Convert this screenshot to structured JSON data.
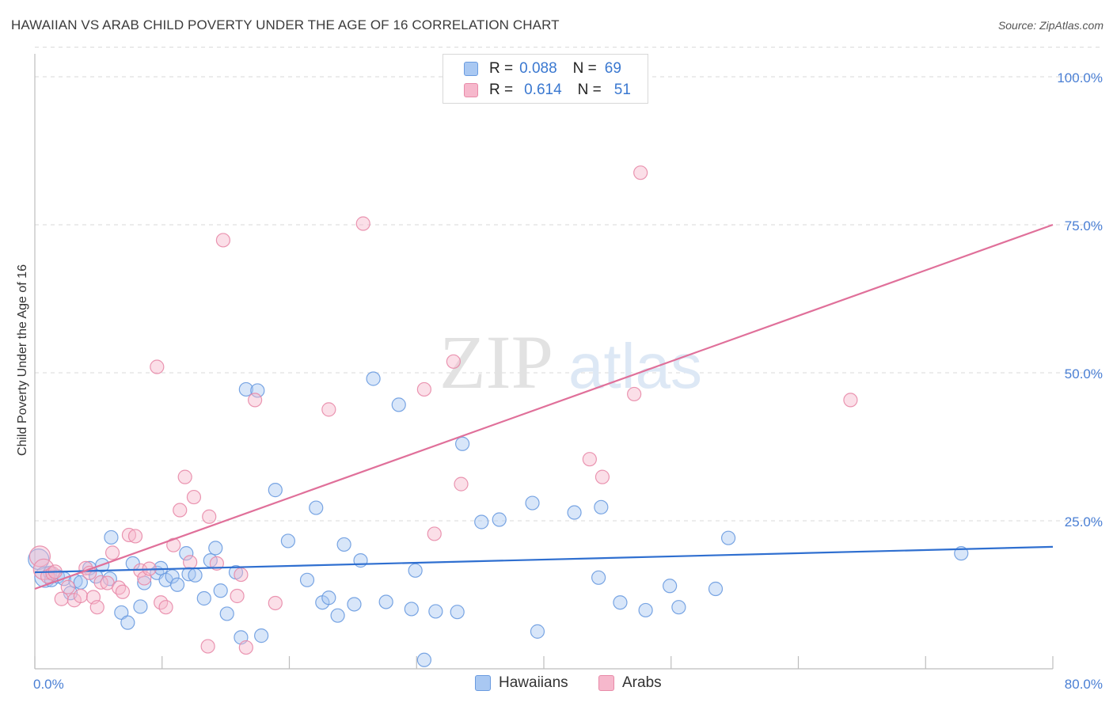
{
  "title": "HAWAIIAN VS ARAB CHILD POVERTY UNDER THE AGE OF 16 CORRELATION CHART",
  "source": "Source: ZipAtlas.com",
  "watermark": {
    "part1": "ZIP",
    "part2": "atlas"
  },
  "colors": {
    "hawaiians_fill": "#a9c8f2",
    "hawaiians_stroke": "#6a9be0",
    "hawaiians_line": "#2f6fd0",
    "arabs_fill": "#f6b8cc",
    "arabs_stroke": "#e88aa8",
    "arabs_line": "#e0709a",
    "grid": "#d9d9d9",
    "tick_label": "#4a7fd4"
  },
  "legend": {
    "row1": {
      "r_label": "R =",
      "r_value": "0.088",
      "n_label": "N =",
      "n_value": "69"
    },
    "row2": {
      "r_label": "R =",
      "r_value": "0.614",
      "n_label": "N =",
      "n_value": "51"
    }
  },
  "bottom_legend": {
    "series1": "Hawaiians",
    "series2": "Arabs"
  },
  "chart_data": {
    "type": "scatter",
    "title": "HAWAIIAN VS ARAB CHILD POVERTY UNDER THE AGE OF 16 CORRELATION CHART",
    "xlabel": "",
    "ylabel": "Child Poverty Under the Age of 16",
    "xlim": [
      0,
      80
    ],
    "ylim": [
      0,
      105
    ],
    "x_tick_labels": [
      "0.0%",
      "80.0%"
    ],
    "y_ticks": [
      25,
      50,
      75,
      100
    ],
    "y_tick_labels": [
      "25.0%",
      "50.0%",
      "75.0%",
      "100.0%"
    ],
    "grid": true,
    "series": [
      {
        "name": "Hawaiians",
        "R": 0.088,
        "N": 69,
        "trend": {
          "x": [
            0,
            80
          ],
          "y": [
            16.3,
            20.6
          ]
        },
        "points": [
          [
            0.3,
            18.5
          ],
          [
            0.8,
            15.5
          ],
          [
            1.2,
            16.2
          ],
          [
            1.3,
            15.0
          ],
          [
            1.8,
            15.6
          ],
          [
            2.3,
            15.2
          ],
          [
            2.8,
            12.8
          ],
          [
            3.2,
            14.8
          ],
          [
            3.6,
            14.6
          ],
          [
            4.3,
            17.0
          ],
          [
            4.8,
            15.6
          ],
          [
            5.3,
            17.5
          ],
          [
            5.9,
            15.2
          ],
          [
            6.0,
            22.2
          ],
          [
            6.8,
            9.5
          ],
          [
            7.3,
            7.8
          ],
          [
            7.7,
            17.8
          ],
          [
            8.3,
            10.5
          ],
          [
            8.6,
            14.5
          ],
          [
            9.6,
            16.2
          ],
          [
            9.9,
            17.0
          ],
          [
            10.3,
            15.0
          ],
          [
            10.8,
            15.6
          ],
          [
            11.2,
            14.2
          ],
          [
            11.9,
            19.5
          ],
          [
            12.1,
            16.0
          ],
          [
            12.6,
            15.8
          ],
          [
            13.3,
            11.9
          ],
          [
            13.8,
            18.3
          ],
          [
            14.2,
            20.4
          ],
          [
            14.6,
            13.2
          ],
          [
            15.1,
            9.3
          ],
          [
            15.8,
            16.3
          ],
          [
            16.2,
            5.3
          ],
          [
            16.6,
            47.2
          ],
          [
            17.5,
            47.0
          ],
          [
            17.8,
            5.6
          ],
          [
            18.9,
            30.2
          ],
          [
            19.9,
            21.6
          ],
          [
            21.4,
            15.0
          ],
          [
            22.1,
            27.2
          ],
          [
            22.6,
            11.2
          ],
          [
            23.1,
            12.0
          ],
          [
            23.8,
            9.0
          ],
          [
            24.3,
            21.0
          ],
          [
            25.1,
            10.9
          ],
          [
            25.6,
            18.3
          ],
          [
            26.6,
            49.0
          ],
          [
            27.6,
            11.3
          ],
          [
            28.6,
            44.6
          ],
          [
            29.6,
            10.1
          ],
          [
            29.9,
            16.6
          ],
          [
            30.6,
            1.5
          ],
          [
            31.5,
            9.7
          ],
          [
            33.2,
            9.6
          ],
          [
            33.6,
            38.0
          ],
          [
            35.1,
            24.8
          ],
          [
            36.5,
            25.2
          ],
          [
            39.1,
            28.0
          ],
          [
            39.5,
            6.3
          ],
          [
            42.4,
            26.4
          ],
          [
            44.3,
            15.4
          ],
          [
            44.5,
            27.3
          ],
          [
            46.0,
            11.2
          ],
          [
            48.0,
            9.9
          ],
          [
            49.9,
            14.0
          ],
          [
            50.6,
            10.4
          ],
          [
            53.5,
            13.5
          ],
          [
            54.5,
            22.1
          ],
          [
            72.8,
            19.5
          ]
        ]
      },
      {
        "name": "Arabs",
        "R": 0.614,
        "N": 51,
        "trend": {
          "x": [
            0,
            80
          ],
          "y": [
            13.5,
            75.0
          ]
        },
        "points": [
          [
            0.4,
            19.0
          ],
          [
            0.7,
            16.8
          ],
          [
            1.0,
            15.6
          ],
          [
            1.4,
            16.1
          ],
          [
            1.6,
            16.4
          ],
          [
            2.1,
            11.8
          ],
          [
            2.6,
            13.8
          ],
          [
            3.1,
            11.6
          ],
          [
            3.6,
            12.3
          ],
          [
            4.0,
            17.0
          ],
          [
            4.3,
            16.2
          ],
          [
            4.6,
            12.1
          ],
          [
            4.9,
            10.4
          ],
          [
            5.2,
            14.6
          ],
          [
            5.7,
            14.5
          ],
          [
            6.1,
            19.6
          ],
          [
            6.6,
            13.7
          ],
          [
            6.9,
            13.0
          ],
          [
            7.4,
            22.6
          ],
          [
            7.9,
            22.4
          ],
          [
            8.3,
            16.6
          ],
          [
            8.6,
            15.3
          ],
          [
            9.0,
            16.9
          ],
          [
            9.6,
            51.0
          ],
          [
            9.9,
            11.2
          ],
          [
            10.3,
            10.4
          ],
          [
            10.9,
            20.9
          ],
          [
            11.4,
            26.8
          ],
          [
            11.8,
            32.4
          ],
          [
            12.2,
            18.0
          ],
          [
            12.5,
            29.0
          ],
          [
            13.6,
            3.8
          ],
          [
            13.7,
            25.7
          ],
          [
            14.3,
            17.8
          ],
          [
            14.8,
            72.4
          ],
          [
            15.9,
            12.3
          ],
          [
            16.2,
            15.9
          ],
          [
            16.6,
            3.6
          ],
          [
            17.3,
            45.4
          ],
          [
            18.9,
            11.1
          ],
          [
            23.1,
            43.8
          ],
          [
            25.8,
            75.2
          ],
          [
            30.6,
            47.2
          ],
          [
            31.4,
            22.8
          ],
          [
            32.9,
            51.9
          ],
          [
            33.5,
            31.2
          ],
          [
            43.6,
            35.4
          ],
          [
            44.6,
            32.4
          ],
          [
            47.1,
            46.4
          ],
          [
            47.6,
            83.8
          ],
          [
            64.1,
            45.4
          ]
        ]
      }
    ]
  }
}
